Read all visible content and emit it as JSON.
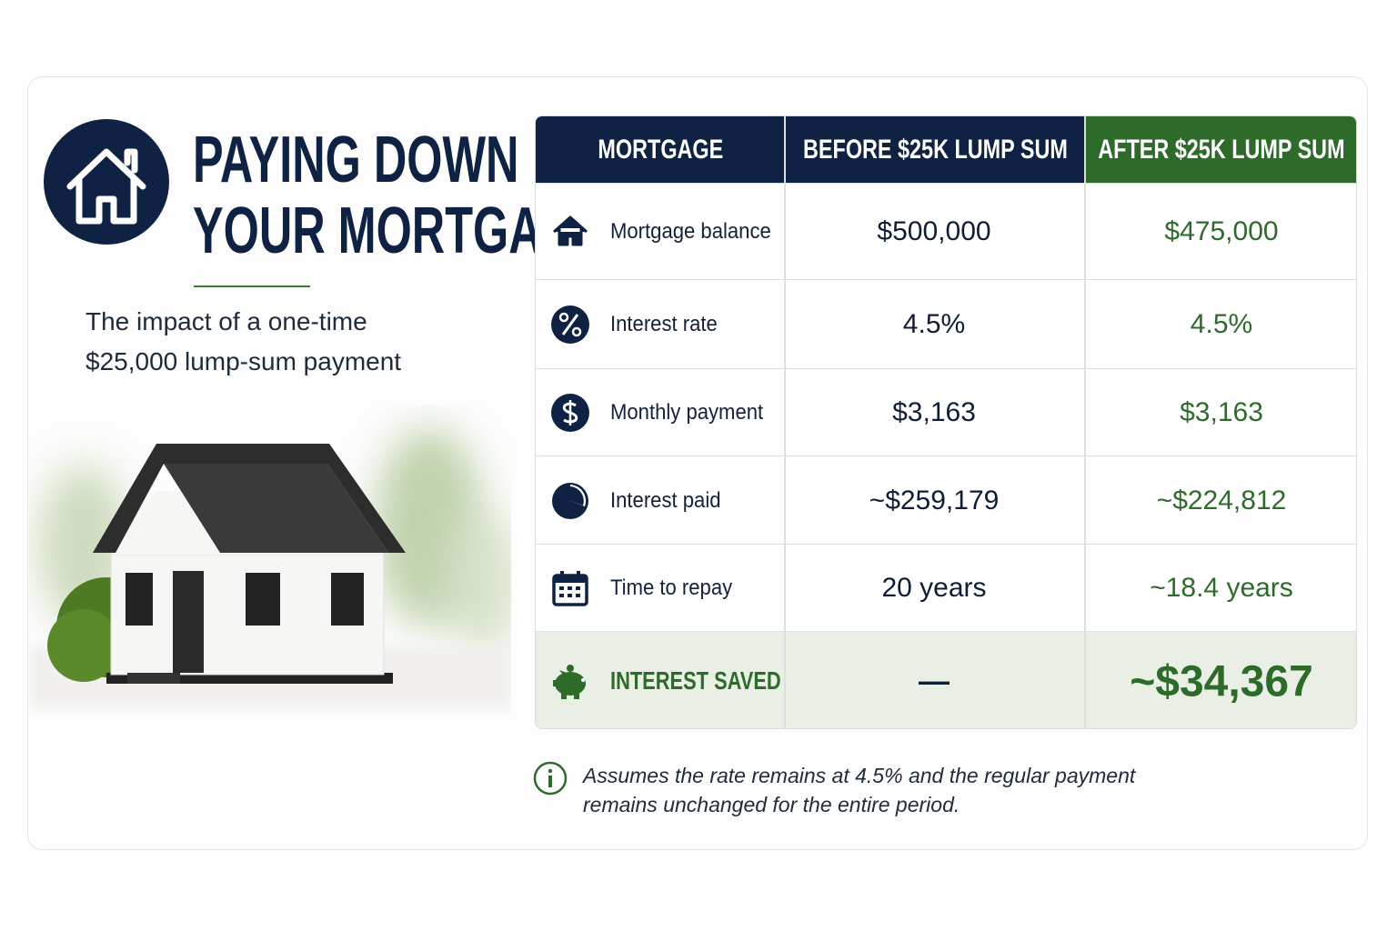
{
  "header": {
    "title_lines": [
      "PAYING DOWN",
      "YOUR MORTGAGE"
    ],
    "subtitle_lines": [
      "The impact of a one-time",
      "$25,000 lump-sum payment"
    ]
  },
  "table": {
    "headers": [
      "MORTGAGE",
      "BEFORE $25K LUMP SUM",
      "AFTER $25K LUMP SUM"
    ],
    "rows": [
      {
        "label": "Mortgage balance",
        "before": "$500,000",
        "after": "$475,000"
      },
      {
        "label": "Interest rate",
        "before": "4.5%",
        "after": "4.5%"
      },
      {
        "label": "Monthly payment",
        "before": "$3,163",
        "after": "$3,163"
      },
      {
        "label": "Interest paid",
        "before": "~$259,179",
        "after": "~$224,812"
      },
      {
        "label": "Time to repay",
        "before": "20 years",
        "after": "~18.4 years"
      },
      {
        "label": "INTEREST SAVED",
        "before": "—",
        "after": "~$34,367"
      }
    ]
  },
  "note_lines": [
    "Assumes the rate remains at 4.5% and the regular payment",
    "remains unchanged for the entire period."
  ]
}
